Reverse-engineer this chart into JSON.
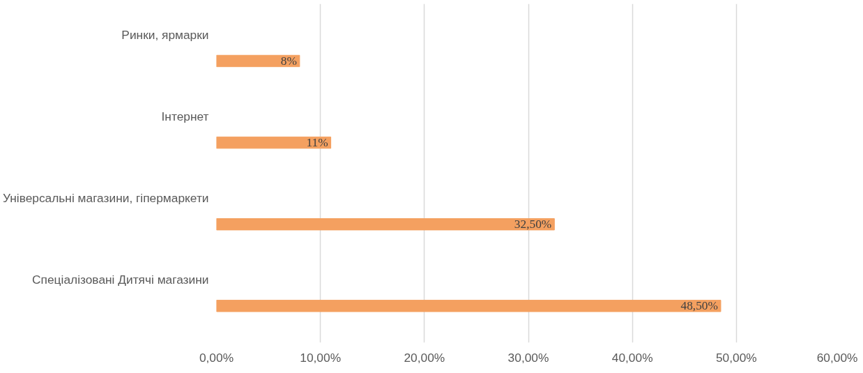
{
  "chart_data": {
    "type": "bar",
    "orientation": "horizontal",
    "categories": [
      "Ринки, ярмарки",
      "Інтернет",
      "Універсальні магазини, гіпермаркети",
      "Спеціалізовані Дитячі магазини"
    ],
    "values": [
      8,
      11,
      32.5,
      48.5
    ],
    "value_labels": [
      "8%",
      "11%",
      "32,50%",
      "48,50%"
    ],
    "color": "#f4a060",
    "xlim": [
      0,
      60
    ],
    "xticks": [
      {
        "value": 0,
        "label": "0,00%"
      },
      {
        "value": 10,
        "label": "10,00%"
      },
      {
        "value": 20,
        "label": "20,00%"
      },
      {
        "value": 30,
        "label": "30,00%"
      },
      {
        "value": 40,
        "label": "40,00%"
      },
      {
        "value": 50,
        "label": "50,00%"
      },
      {
        "value": 60,
        "label": "60,00%"
      }
    ],
    "grid": "x"
  }
}
